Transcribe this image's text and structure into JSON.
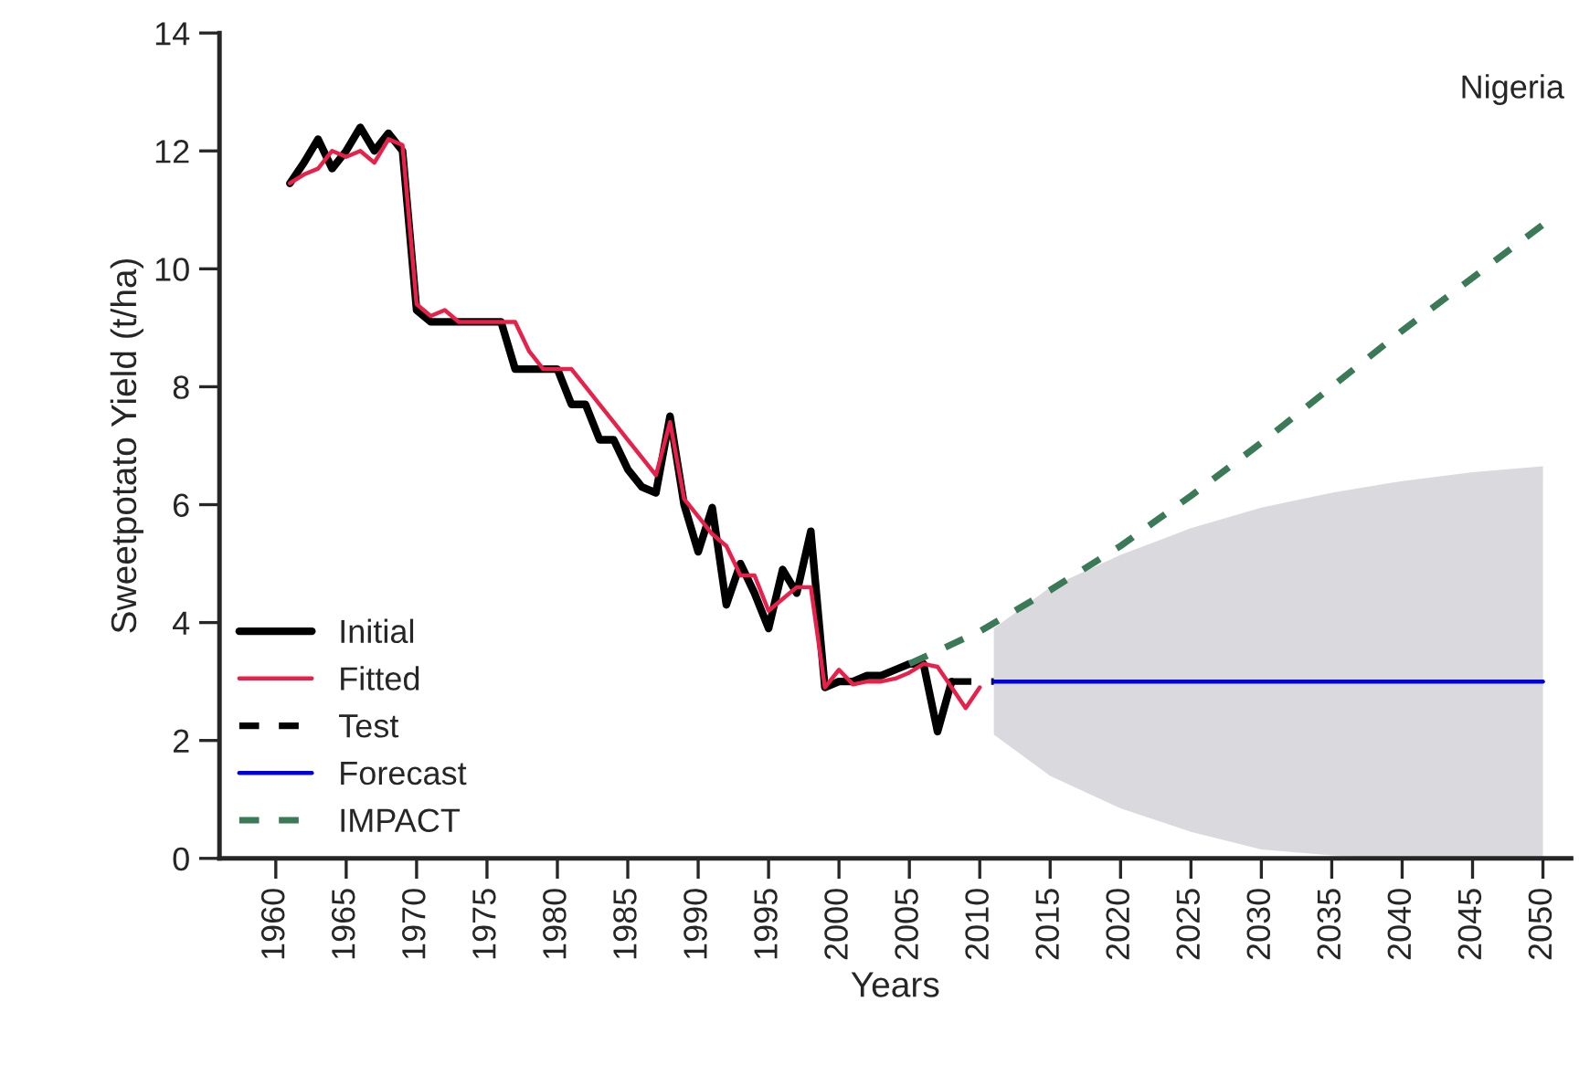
{
  "chart_data": {
    "type": "line",
    "xlabel": "Years",
    "ylabel": "Sweetpotato Yield (t/ha)",
    "annotations": [
      "Nigeria"
    ],
    "xlim": [
      1956,
      2052
    ],
    "ylim": [
      0,
      14
    ],
    "xticks": [
      1960,
      1965,
      1970,
      1975,
      1980,
      1985,
      1990,
      1995,
      2000,
      2005,
      2010,
      2015,
      2020,
      2025,
      2030,
      2035,
      2040,
      2045,
      2050
    ],
    "yticks": [
      0,
      2,
      4,
      6,
      8,
      10,
      12,
      14
    ],
    "grid": false,
    "legend": "bottom left",
    "marker": "none",
    "series": [
      {
        "name": "Initial",
        "color": "#000000",
        "line_style": "solid",
        "x": [
          1961,
          1962,
          1963,
          1964,
          1965,
          1966,
          1967,
          1968,
          1969,
          1970,
          1971,
          1972,
          1973,
          1974,
          1975,
          1976,
          1977,
          1978,
          1979,
          1980,
          1981,
          1982,
          1983,
          1984,
          1985,
          1986,
          1987,
          1988,
          1989,
          1990,
          1991,
          1992,
          1993,
          1994,
          1995,
          1996,
          1997,
          1998,
          1999,
          2000,
          2001,
          2002,
          2003,
          2004,
          2005,
          2006,
          2007,
          2008
        ],
        "values": [
          11.45,
          11.8,
          12.2,
          11.7,
          12.0,
          12.4,
          12.0,
          12.3,
          12.0,
          9.3,
          9.1,
          9.1,
          9.1,
          9.1,
          9.1,
          9.1,
          8.3,
          8.3,
          8.3,
          8.3,
          7.7,
          7.7,
          7.1,
          7.1,
          6.6,
          6.3,
          6.2,
          7.5,
          6.0,
          5.2,
          5.95,
          4.3,
          5.0,
          4.5,
          3.9,
          4.9,
          4.5,
          5.55,
          2.9,
          3.0,
          3.0,
          3.1,
          3.1,
          3.2,
          3.3,
          3.3,
          2.15,
          3.0
        ]
      },
      {
        "name": "Fitted",
        "color": "#e8204a",
        "line_style": "solid",
        "x": [
          1961,
          1962,
          1963,
          1964,
          1965,
          1966,
          1967,
          1968,
          1969,
          1970,
          1971,
          1972,
          1973,
          1974,
          1975,
          1976,
          1977,
          1978,
          1979,
          1980,
          1981,
          1982,
          1983,
          1984,
          1985,
          1986,
          1987,
          1988,
          1989,
          1990,
          1991,
          1992,
          1993,
          1994,
          1995,
          1996,
          1997,
          1998,
          1999,
          2000,
          2001,
          2002,
          2003,
          2004,
          2005,
          2006,
          2007,
          2008,
          2009,
          2010
        ],
        "values": [
          11.45,
          11.6,
          11.7,
          12.0,
          11.9,
          12.0,
          11.8,
          12.2,
          12.1,
          9.4,
          9.2,
          9.3,
          9.1,
          9.1,
          9.1,
          9.1,
          9.1,
          8.6,
          8.3,
          8.3,
          8.3,
          8.0,
          7.7,
          7.4,
          7.1,
          6.8,
          6.5,
          7.4,
          6.1,
          5.8,
          5.5,
          5.3,
          4.8,
          4.8,
          4.2,
          4.4,
          4.6,
          4.6,
          2.9,
          3.2,
          2.95,
          3.0,
          3.0,
          3.05,
          3.15,
          3.3,
          3.25,
          2.9,
          2.55,
          2.9
        ]
      },
      {
        "name": "Test",
        "color": "#000000",
        "line_style": "dashed",
        "x": [
          2008,
          2011
        ],
        "values": [
          3.0,
          3.0
        ]
      },
      {
        "name": "Forecast",
        "color": "#0000dd",
        "line_style": "solid",
        "x": [
          2011,
          2015,
          2020,
          2025,
          2030,
          2035,
          2040,
          2045,
          2050
        ],
        "values": [
          3.0,
          3.0,
          3.0,
          3.0,
          3.0,
          3.0,
          3.0,
          3.0,
          3.0
        ],
        "lower": [
          2.1,
          1.4,
          0.85,
          0.45,
          0.15,
          0.05,
          0,
          0,
          0
        ],
        "upper": [
          3.9,
          4.6,
          5.15,
          5.6,
          5.95,
          6.2,
          6.4,
          6.55,
          6.65
        ]
      },
      {
        "name": "IMPACT",
        "color": "#3b7a57",
        "line_style": "dashed",
        "x": [
          2005,
          2010,
          2015,
          2020,
          2025,
          2030,
          2035,
          2040,
          2045,
          2050
        ],
        "values": [
          3.3,
          3.85,
          4.55,
          5.3,
          6.15,
          7.05,
          8.0,
          8.95,
          9.85,
          10.75
        ]
      }
    ]
  }
}
